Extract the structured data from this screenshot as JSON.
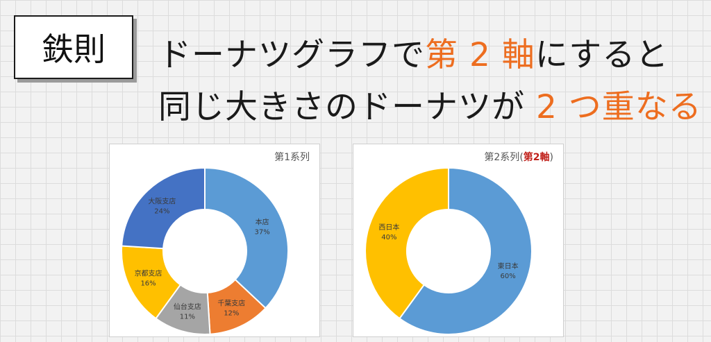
{
  "badge": {
    "label": "鉄則"
  },
  "headline": {
    "line1": {
      "pre": "ドーナツグラフで",
      "highlight": "第 2 軸",
      "post": "にすると"
    },
    "line2": {
      "pre": "同じ大きさのドーナツが ",
      "highlight": "2 つ重なる"
    }
  },
  "colors": {
    "accent": "#ed6d1f",
    "axis_red": "#c0201a"
  },
  "chart_data": [
    {
      "type": "pie",
      "subtype": "donut",
      "title": "第1系列",
      "start_angle_deg": 0,
      "slices": [
        {
          "label": "本店",
          "value": 37,
          "value_label": "37%",
          "color": "#5b9bd5"
        },
        {
          "label": "千葉支店",
          "value": 12,
          "value_label": "12%",
          "color": "#ed7d31"
        },
        {
          "label": "仙台支店",
          "value": 11,
          "value_label": "11%",
          "color": "#a5a5a5"
        },
        {
          "label": "京都支店",
          "value": 16,
          "value_label": "16%",
          "color": "#ffc000"
        },
        {
          "label": "大阪支店",
          "value": 24,
          "value_label": "24%",
          "color": "#4472c4"
        }
      ]
    },
    {
      "type": "pie",
      "subtype": "donut",
      "title": "第2系列",
      "title_suffix_open": "(",
      "title_suffix": "第2軸",
      "title_suffix_close": ")",
      "start_angle_deg": 0,
      "slices": [
        {
          "label": "東日本",
          "value": 60,
          "value_label": "60%",
          "color": "#5b9bd5"
        },
        {
          "label": "西日本",
          "value": 40,
          "value_label": "40%",
          "color": "#ffc000"
        }
      ]
    }
  ]
}
